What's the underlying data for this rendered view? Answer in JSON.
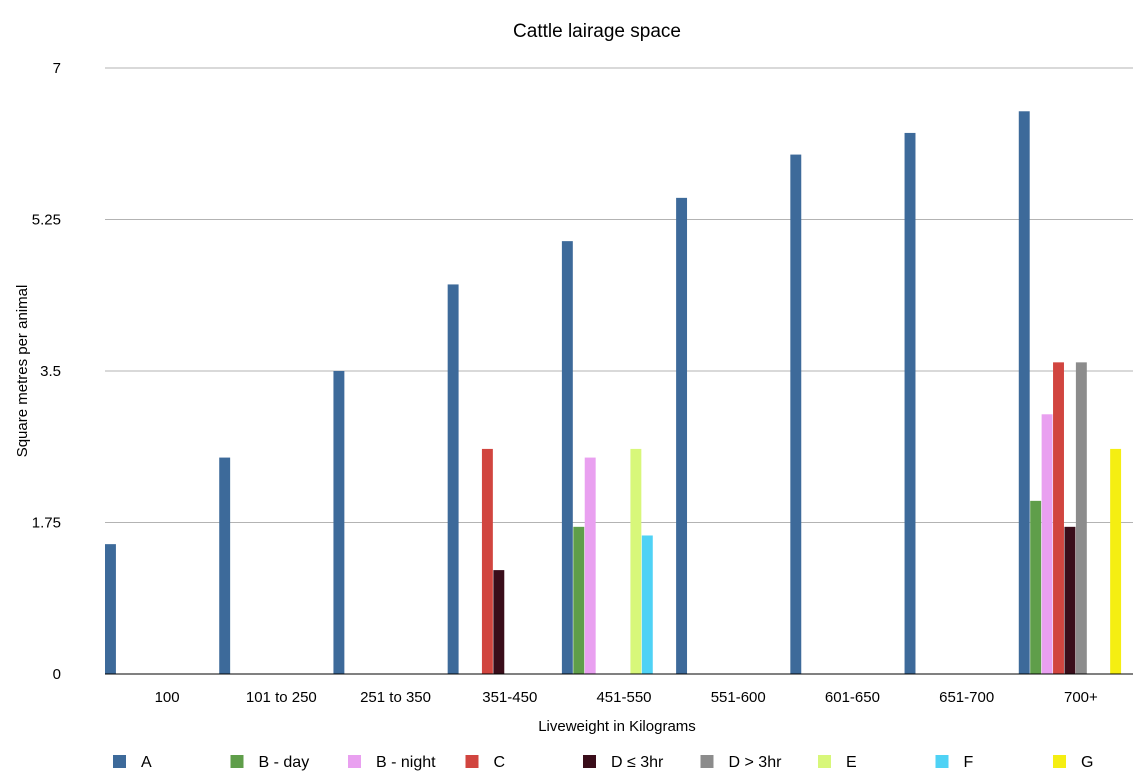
{
  "chart_data": {
    "type": "bar",
    "title": "Cattle lairage space",
    "xlabel": "Liveweight in Kilograms",
    "ylabel": "Square metres per animal",
    "ylim": [
      0,
      7
    ],
    "yticks": [
      "0",
      "1.75",
      "3.5",
      "5.25",
      "7"
    ],
    "grid": true,
    "legend_position": "bottom",
    "categories": [
      "100",
      "101 to 250",
      "251 to 350",
      "351-450",
      "451-550",
      "551-600",
      "601-650",
      "651-700",
      "700+"
    ],
    "series": [
      {
        "name": "A",
        "color": "#3d6a9a",
        "values": [
          1.5,
          2.5,
          3.5,
          4.5,
          5.0,
          5.5,
          6.0,
          6.25,
          6.5
        ]
      },
      {
        "name": "B - day",
        "color": "#5f9e4a",
        "values": [
          null,
          null,
          null,
          null,
          1.7,
          null,
          null,
          null,
          2.0
        ]
      },
      {
        "name": "B - night",
        "color": "#e9a0f0",
        "values": [
          null,
          null,
          null,
          null,
          2.5,
          null,
          null,
          null,
          3.0
        ]
      },
      {
        "name": "C",
        "color": "#d1453f",
        "values": [
          null,
          null,
          null,
          2.6,
          null,
          null,
          null,
          null,
          3.6
        ]
      },
      {
        "name": "D ≤ 3hr",
        "color": "#3a0d1a",
        "values": [
          null,
          null,
          null,
          1.2,
          null,
          null,
          null,
          null,
          1.7
        ]
      },
      {
        "name": "D > 3hr",
        "color": "#8c8c8c",
        "values": [
          null,
          null,
          null,
          null,
          null,
          null,
          null,
          null,
          3.6
        ]
      },
      {
        "name": "E",
        "color": "#d8f77a",
        "values": [
          null,
          null,
          null,
          null,
          2.6,
          null,
          null,
          null,
          null
        ]
      },
      {
        "name": "F",
        "color": "#4fd2f5",
        "values": [
          null,
          null,
          null,
          null,
          1.6,
          null,
          null,
          null,
          null
        ]
      },
      {
        "name": "G",
        "color": "#f5ee12",
        "values": [
          null,
          null,
          null,
          null,
          null,
          null,
          null,
          null,
          2.6
        ]
      }
    ]
  }
}
